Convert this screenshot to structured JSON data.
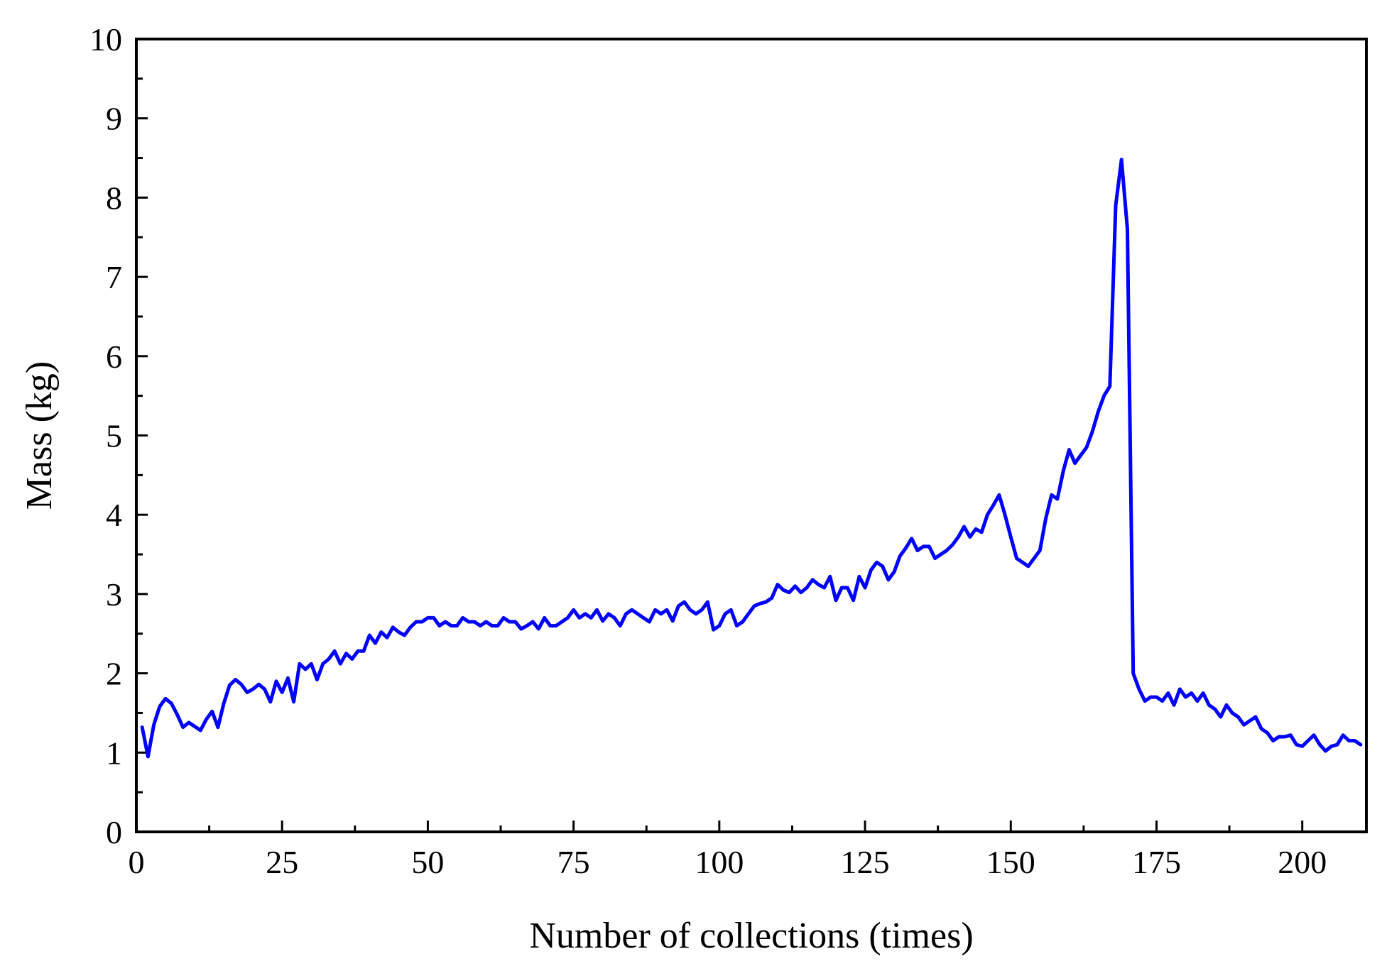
{
  "chart_data": {
    "type": "line",
    "title": "",
    "xlabel": "Number of collections (times)",
    "ylabel": "Mass (kg)",
    "xlim": [
      0,
      211
    ],
    "ylim": [
      0,
      10
    ],
    "xticks": [
      0,
      25,
      50,
      75,
      100,
      125,
      150,
      175,
      200
    ],
    "yticks": [
      0,
      1,
      2,
      3,
      4,
      5,
      6,
      7,
      8,
      9,
      10
    ],
    "grid": false,
    "legend": "none",
    "series": [
      {
        "color": "#0000ff",
        "x": [
          1,
          2,
          3,
          4,
          5,
          6,
          7,
          8,
          9,
          10,
          11,
          12,
          13,
          14,
          15,
          16,
          17,
          18,
          19,
          20,
          21,
          22,
          23,
          24,
          25,
          26,
          27,
          28,
          29,
          30,
          31,
          32,
          33,
          34,
          35,
          36,
          37,
          38,
          39,
          40,
          41,
          42,
          43,
          44,
          45,
          46,
          47,
          48,
          49,
          50,
          51,
          52,
          53,
          54,
          55,
          56,
          57,
          58,
          59,
          60,
          61,
          62,
          63,
          64,
          65,
          66,
          67,
          68,
          69,
          70,
          71,
          72,
          73,
          74,
          75,
          76,
          77,
          78,
          79,
          80,
          81,
          82,
          83,
          84,
          85,
          86,
          87,
          88,
          89,
          90,
          91,
          92,
          93,
          94,
          95,
          96,
          97,
          98,
          99,
          100,
          101,
          102,
          103,
          104,
          105,
          106,
          107,
          108,
          109,
          110,
          111,
          112,
          113,
          114,
          115,
          116,
          117,
          118,
          119,
          120,
          121,
          122,
          123,
          124,
          125,
          126,
          127,
          128,
          129,
          130,
          131,
          132,
          133,
          134,
          135,
          136,
          137,
          138,
          139,
          140,
          141,
          142,
          143,
          144,
          145,
          146,
          147,
          148,
          149,
          150,
          151,
          152,
          153,
          154,
          155,
          156,
          157,
          158,
          159,
          160,
          161,
          162,
          163,
          164,
          165,
          166,
          167,
          168,
          169,
          170,
          171,
          172,
          173,
          174,
          175,
          176,
          177,
          178,
          179,
          180,
          181,
          182,
          183,
          184,
          185,
          186,
          187,
          188,
          189,
          190,
          191,
          192,
          193,
          194,
          195,
          196,
          197,
          198,
          199,
          200,
          201,
          202,
          203,
          204,
          205,
          206,
          207,
          208,
          209,
          210
        ],
        "y": [
          1.32,
          0.95,
          1.35,
          1.58,
          1.68,
          1.62,
          1.48,
          1.32,
          1.38,
          1.33,
          1.28,
          1.42,
          1.52,
          1.32,
          1.62,
          1.85,
          1.92,
          1.86,
          1.76,
          1.8,
          1.86,
          1.8,
          1.64,
          1.9,
          1.76,
          1.94,
          1.64,
          2.12,
          2.05,
          2.12,
          1.92,
          2.12,
          2.18,
          2.28,
          2.12,
          2.25,
          2.18,
          2.28,
          2.28,
          2.48,
          2.38,
          2.52,
          2.45,
          2.58,
          2.52,
          2.48,
          2.58,
          2.65,
          2.65,
          2.7,
          2.7,
          2.6,
          2.65,
          2.6,
          2.6,
          2.7,
          2.65,
          2.65,
          2.6,
          2.65,
          2.6,
          2.6,
          2.7,
          2.65,
          2.65,
          2.56,
          2.6,
          2.65,
          2.56,
          2.7,
          2.6,
          2.6,
          2.65,
          2.7,
          2.8,
          2.7,
          2.75,
          2.7,
          2.8,
          2.66,
          2.75,
          2.7,
          2.6,
          2.75,
          2.8,
          2.75,
          2.7,
          2.65,
          2.8,
          2.75,
          2.8,
          2.66,
          2.85,
          2.9,
          2.8,
          2.75,
          2.8,
          2.9,
          2.55,
          2.6,
          2.75,
          2.8,
          2.6,
          2.65,
          2.75,
          2.85,
          2.88,
          2.9,
          2.95,
          3.12,
          3.05,
          3.02,
          3.1,
          3.02,
          3.08,
          3.18,
          3.12,
          3.08,
          3.22,
          2.92,
          3.08,
          3.08,
          2.92,
          3.22,
          3.08,
          3.3,
          3.4,
          3.35,
          3.18,
          3.28,
          3.48,
          3.58,
          3.7,
          3.55,
          3.6,
          3.6,
          3.45,
          3.5,
          3.55,
          3.62,
          3.72,
          3.85,
          3.72,
          3.82,
          3.78,
          4.0,
          4.12,
          4.25,
          4.0,
          3.72,
          3.45,
          3.4,
          3.35,
          3.45,
          3.55,
          3.95,
          4.25,
          4.2,
          4.55,
          4.82,
          4.65,
          4.75,
          4.85,
          5.05,
          5.3,
          5.5,
          5.62,
          7.9,
          8.48,
          7.6,
          2.0,
          1.8,
          1.65,
          1.7,
          1.7,
          1.65,
          1.75,
          1.6,
          1.8,
          1.7,
          1.75,
          1.65,
          1.75,
          1.6,
          1.55,
          1.45,
          1.6,
          1.5,
          1.45,
          1.35,
          1.4,
          1.45,
          1.3,
          1.25,
          1.15,
          1.2,
          1.2,
          1.22,
          1.1,
          1.08,
          1.15,
          1.22,
          1.1,
          1.02,
          1.08,
          1.1,
          1.22,
          1.15,
          1.15,
          1.1
        ]
      }
    ]
  }
}
